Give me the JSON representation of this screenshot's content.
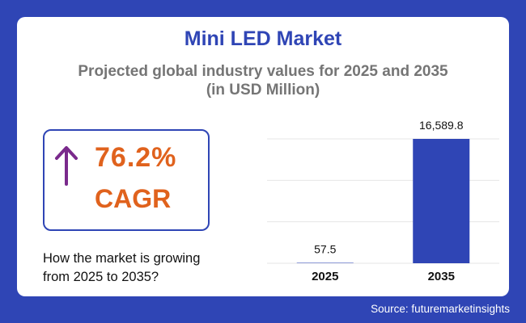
{
  "title": "Mini LED Market",
  "subtitle_line1": "Projected global industry values for 2025 and 2035",
  "subtitle_line2": "(in USD Million)",
  "cagr": {
    "value": "76.2%",
    "label": "CAGR",
    "icon": "arrow-up-icon"
  },
  "growth_line1": "How the market is growing",
  "growth_line2": "from 2025 to 2035?",
  "source": "Source: futuremarketinsights",
  "colors": {
    "accent": "#2f45b5",
    "orange": "#e0621d",
    "purple": "#7a2a8c",
    "grey": "#757575"
  },
  "chart_data": {
    "type": "bar",
    "categories": [
      "2025",
      "2035"
    ],
    "values": [
      57.5,
      16589.8
    ],
    "value_labels": [
      "57.5",
      "16,589.8"
    ],
    "title": "Mini LED Market",
    "ylabel": "USD Million",
    "ylim": [
      0,
      16589.8
    ],
    "grid": true
  }
}
